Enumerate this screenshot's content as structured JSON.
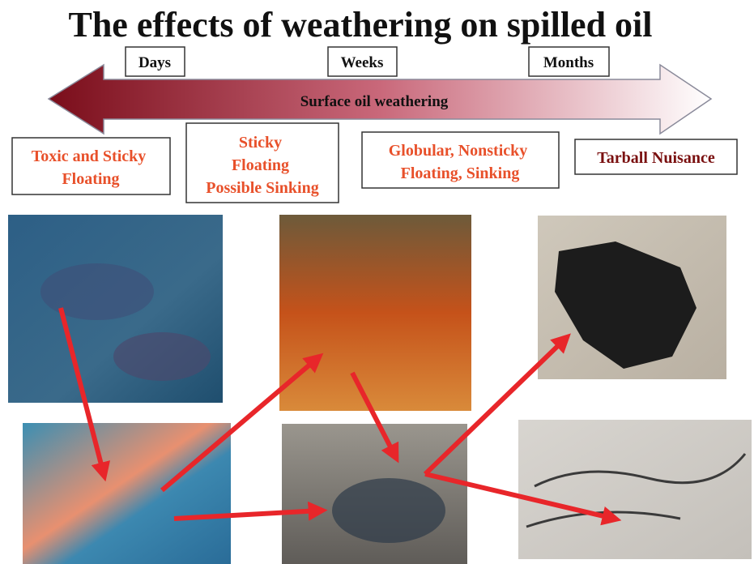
{
  "title": "The effects of weathering on spilled oil",
  "timeline": {
    "labels": [
      "Days",
      "Weeks",
      "Months"
    ],
    "arrow_label": "Surface oil weathering"
  },
  "stages": [
    {
      "lines": [
        "Toxic and Sticky",
        "Floating"
      ]
    },
    {
      "lines": [
        "Sticky",
        "Floating",
        "Possible Sinking"
      ]
    },
    {
      "lines": [
        "Globular, Nonsticky",
        "Floating, Sinking"
      ]
    },
    {
      "lines": [
        "Tarball Nuisance"
      ]
    }
  ]
}
